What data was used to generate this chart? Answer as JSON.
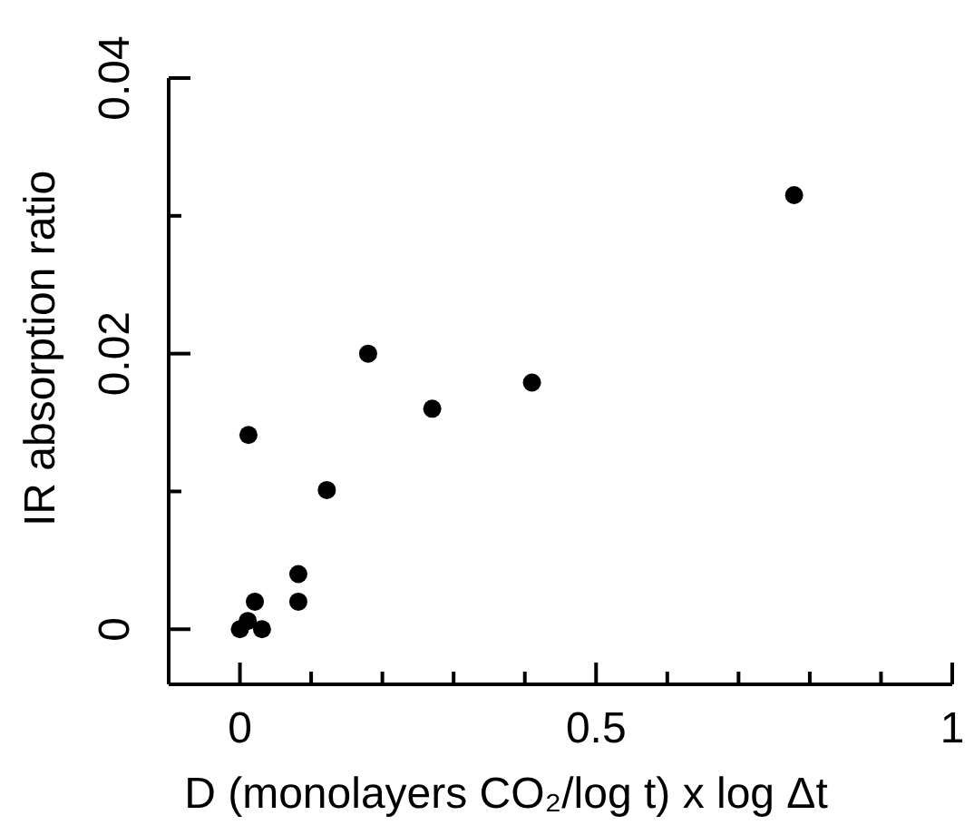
{
  "chart_data": {
    "type": "scatter",
    "xlabel": "D (monolayers CO₂/log t) x log Δt",
    "ylabel": "IR absorption ratio",
    "series": [
      {
        "color": "#000000",
        "x": [
          0.778,
          0.012,
          0.122,
          0.18,
          0.27,
          0.41,
          0.082,
          0.082,
          0.021,
          0,
          0.011,
          0.031
        ],
        "values": [
          0.0315,
          0.0141,
          0.0101,
          0.02,
          0.016,
          0.0179,
          0.004,
          0.002,
          0.002,
          0,
          0.0006,
          0
        ]
      }
    ],
    "xlim": [
      -0.1,
      1
    ],
    "xticks": [
      0,
      {
        "value": 0.1,
        "label": null
      },
      {
        "value": 0.2,
        "label": null
      },
      {
        "value": 0.3,
        "label": null
      },
      {
        "value": 0.4,
        "label": null
      },
      0.5,
      {
        "value": 0.6,
        "label": null
      },
      {
        "value": 0.7,
        "label": null
      },
      {
        "value": 0.8,
        "label": null
      },
      {
        "value": 0.9,
        "label": null
      },
      1
    ],
    "ylim": [
      -0.004,
      0.04
    ],
    "yticks": [
      0,
      {
        "value": 0.01,
        "label": null
      },
      0.02,
      {
        "value": 0.03,
        "label": null
      },
      0.04
    ],
    "marker": "circle",
    "grid": false,
    "legend": false
  }
}
